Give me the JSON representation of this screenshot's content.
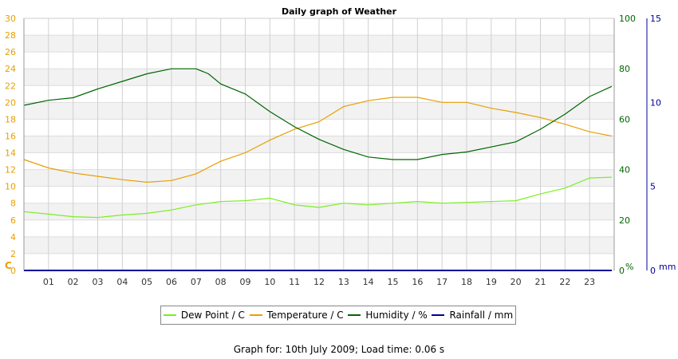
{
  "chart_data": {
    "type": "line",
    "title": "Daily graph of Weather",
    "x_ticks": [
      "01",
      "02",
      "03",
      "04",
      "05",
      "06",
      "07",
      "08",
      "09",
      "10",
      "11",
      "12",
      "13",
      "14",
      "15",
      "16",
      "17",
      "18",
      "19",
      "20",
      "21",
      "22",
      "23"
    ],
    "axes": {
      "left": {
        "unit": "C",
        "ticks": [
          0,
          2,
          4,
          6,
          8,
          10,
          12,
          14,
          16,
          18,
          20,
          22,
          24,
          26,
          28,
          30
        ],
        "range": [
          0,
          30
        ],
        "color": "#e8a000"
      },
      "humidity": {
        "unit": "%",
        "ticks": [
          0,
          20,
          40,
          60,
          80,
          100
        ],
        "range": [
          0,
          100
        ],
        "color": "#006600"
      },
      "rain": {
        "unit": "mm",
        "ticks": [
          0,
          5,
          10,
          15
        ],
        "range": [
          0,
          15
        ],
        "color": "#000099"
      }
    },
    "series": [
      {
        "name": "Dew Point / C",
        "axis": "left",
        "color": "#7cee22",
        "x": [
          0,
          1,
          2,
          3,
          4,
          5,
          6,
          7,
          8,
          9,
          10,
          11,
          12,
          13,
          14,
          15,
          16,
          17,
          18,
          19,
          20,
          21,
          22,
          23,
          23.9
        ],
        "values": [
          7.0,
          6.7,
          6.4,
          6.3,
          6.6,
          6.8,
          7.2,
          7.8,
          8.2,
          8.3,
          8.6,
          7.8,
          7.5,
          8.0,
          7.8,
          8.0,
          8.2,
          8.0,
          8.1,
          8.2,
          8.3,
          9.1,
          9.8,
          11.0,
          11.1
        ]
      },
      {
        "name": "Temperature / C",
        "axis": "left",
        "color": "#e8a000",
        "x": [
          0,
          1,
          2,
          3,
          4,
          5,
          6,
          7,
          8,
          9,
          10,
          11,
          12,
          13,
          14,
          15,
          16,
          17,
          18,
          19,
          20,
          21,
          22,
          23,
          23.9
        ],
        "values": [
          13.2,
          12.2,
          11.6,
          11.2,
          10.8,
          10.5,
          10.7,
          11.5,
          13.0,
          14.0,
          15.5,
          16.8,
          17.7,
          19.5,
          20.2,
          20.6,
          20.6,
          20.0,
          20.0,
          19.3,
          18.8,
          18.2,
          17.4,
          16.5,
          16.0
        ]
      },
      {
        "name": "Humidity / %",
        "axis": "humidity",
        "color": "#006600",
        "x": [
          0,
          1,
          2,
          3,
          4,
          5,
          6,
          7,
          7.5,
          8,
          9,
          10,
          11,
          12,
          13,
          14,
          15,
          16,
          17,
          18,
          19,
          20,
          21,
          22,
          23,
          23.9
        ],
        "values": [
          65.5,
          67.5,
          68.5,
          72,
          75,
          78,
          80,
          80,
          78,
          74,
          70,
          63,
          57,
          52,
          48,
          45,
          44,
          44,
          46,
          47,
          49,
          51,
          56,
          62,
          69,
          73
        ]
      },
      {
        "name": "Rainfall / mm",
        "axis": "rain",
        "color": "#000099",
        "x": [
          0,
          23.9
        ],
        "values": [
          0,
          0
        ]
      }
    ],
    "grid": true,
    "legend_position": "bottom"
  },
  "footer": "Graph for: 10th July 2009; Load time: 0.06 s"
}
